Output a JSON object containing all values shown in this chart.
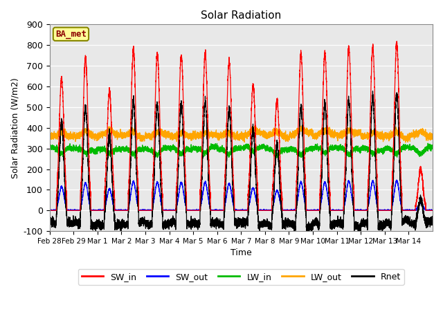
{
  "title": "Solar Radiation",
  "xlabel": "Time",
  "ylabel": "Solar Radiation (W/m2)",
  "ylim": [
    -100,
    900
  ],
  "yticks": [
    -100,
    0,
    100,
    200,
    300,
    400,
    500,
    600,
    700,
    800,
    900
  ],
  "xtick_labels": [
    "Feb 28",
    "Feb 29",
    "Mar 1",
    "Mar 2",
    "Mar 3",
    "Mar 4",
    "Mar 5",
    "Mar 6",
    "Mar 7",
    "Mar 8",
    "Mar 9",
    "Mar 10",
    "Mar 11",
    "Mar 12",
    "Mar 13",
    "Mar 14"
  ],
  "colors": {
    "SW_in": "#FF0000",
    "SW_out": "#0000FF",
    "LW_in": "#00BB00",
    "LW_out": "#FFA500",
    "Rnet": "#000000"
  },
  "legend_label": "BA_met",
  "legend_text_color": "#8B0000",
  "legend_bg": "#FFFF99",
  "legend_border": "#888800",
  "plot_bg": "#E8E8E8",
  "n_days": 16,
  "lw": 0.9
}
